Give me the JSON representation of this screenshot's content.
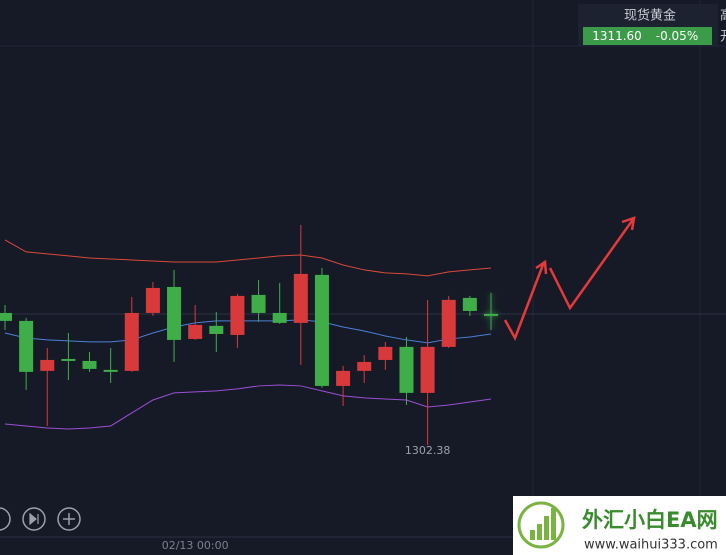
{
  "quote": {
    "name": "现货黄金",
    "price": 1311.6,
    "price_label": "1311.60",
    "change": "-0.05%",
    "fields": [
      "高",
      "开"
    ]
  },
  "watermark": {
    "title": "外汇小白EA网",
    "url": "www.waihui333.com"
  },
  "chart_data": {
    "type": "candlestick",
    "categories": [
      null,
      null,
      null,
      null,
      null,
      null,
      null,
      null,
      null,
      "02/13 00:00",
      null,
      null,
      null,
      null,
      null,
      null,
      null,
      null,
      null,
      null,
      null,
      null,
      null,
      null
    ],
    "open": [
      1311.11,
      1307.52,
      1308.36,
      1308.29,
      1307.73,
      1307.52,
      1311.67,
      1313.43,
      1309.77,
      1310.83,
      1310.19,
      1312.87,
      1311.67,
      1310.97,
      1314.42,
      1306.53,
      1307.59,
      1308.22,
      1309.28,
      1306.04,
      1309.28,
      1312.59,
      1311.81,
      1311.46
    ],
    "high": [
      1312.23,
      1311.32,
      1309.21,
      1310.26,
      1308.92,
      1309.21,
      1312.8,
      1313.85,
      1314.7,
      1312.23,
      1311.74,
      1313.01,
      1313.99,
      1313.78,
      1317.87,
      1314.84,
      1307.94,
      1308.71,
      1309.63,
      1309.98,
      1312.59,
      1312.87,
      1312.87,
      1313.08
    ],
    "low": [
      1310.47,
      1306.25,
      1303.71,
      1306.95,
      1307.52,
      1306.74,
      1307.52,
      1311.46,
      1308.22,
      1309.77,
      1308.92,
      1309.21,
      1311.04,
      1310.9,
      1308.01,
      1306.39,
      1305.12,
      1306.74,
      1307.66,
      1305.19,
      1302.38,
      1309.21,
      1311.46,
      1310.47
    ],
    "close": [
      1311.67,
      1311.11,
      1307.59,
      1308.43,
      1308.29,
      1307.66,
      1307.59,
      1311.67,
      1313.5,
      1309.84,
      1310.76,
      1310.12,
      1312.94,
      1311.67,
      1310.97,
      1314.35,
      1306.53,
      1307.59,
      1308.36,
      1309.28,
      1306.04,
      1309.28,
      1312.73,
      1311.6
    ],
    "up_color": "#3fae49",
    "down_color": "#d8393b",
    "series": [
      {
        "color": "#d9493a",
        "values": [
          1316.81,
          1315.97,
          1315.83,
          1315.69,
          1315.54,
          1315.47,
          1315.4,
          1315.33,
          1315.26,
          1315.26,
          1315.26,
          1315.4,
          1315.54,
          1315.69,
          1315.75,
          1315.54,
          1315.05,
          1314.7,
          1314.49,
          1314.42,
          1314.28,
          1314.56,
          1314.7,
          1314.84
        ]
      },
      {
        "color": "#4b7fd8",
        "values": [
          1310.26,
          1309.91,
          1309.77,
          1309.7,
          1309.63,
          1309.63,
          1309.77,
          1310.26,
          1310.68,
          1310.97,
          1311.11,
          1311.11,
          1311.11,
          1311.11,
          1311.18,
          1311.04,
          1310.68,
          1310.4,
          1310.05,
          1309.77,
          1309.56,
          1309.84,
          1309.98,
          1310.19
        ]
      },
      {
        "color": "#9b4fd6",
        "values": [
          1303.85,
          1303.71,
          1303.57,
          1303.5,
          1303.57,
          1303.71,
          1304.63,
          1305.54,
          1306.04,
          1306.11,
          1306.18,
          1306.32,
          1306.53,
          1306.6,
          1306.53,
          1306.18,
          1305.83,
          1305.69,
          1305.61,
          1305.54,
          1305.05,
          1305.19,
          1305.4,
          1305.61
        ]
      }
    ],
    "ylim": [
      1295.68,
      1333.71
    ]
  }
}
